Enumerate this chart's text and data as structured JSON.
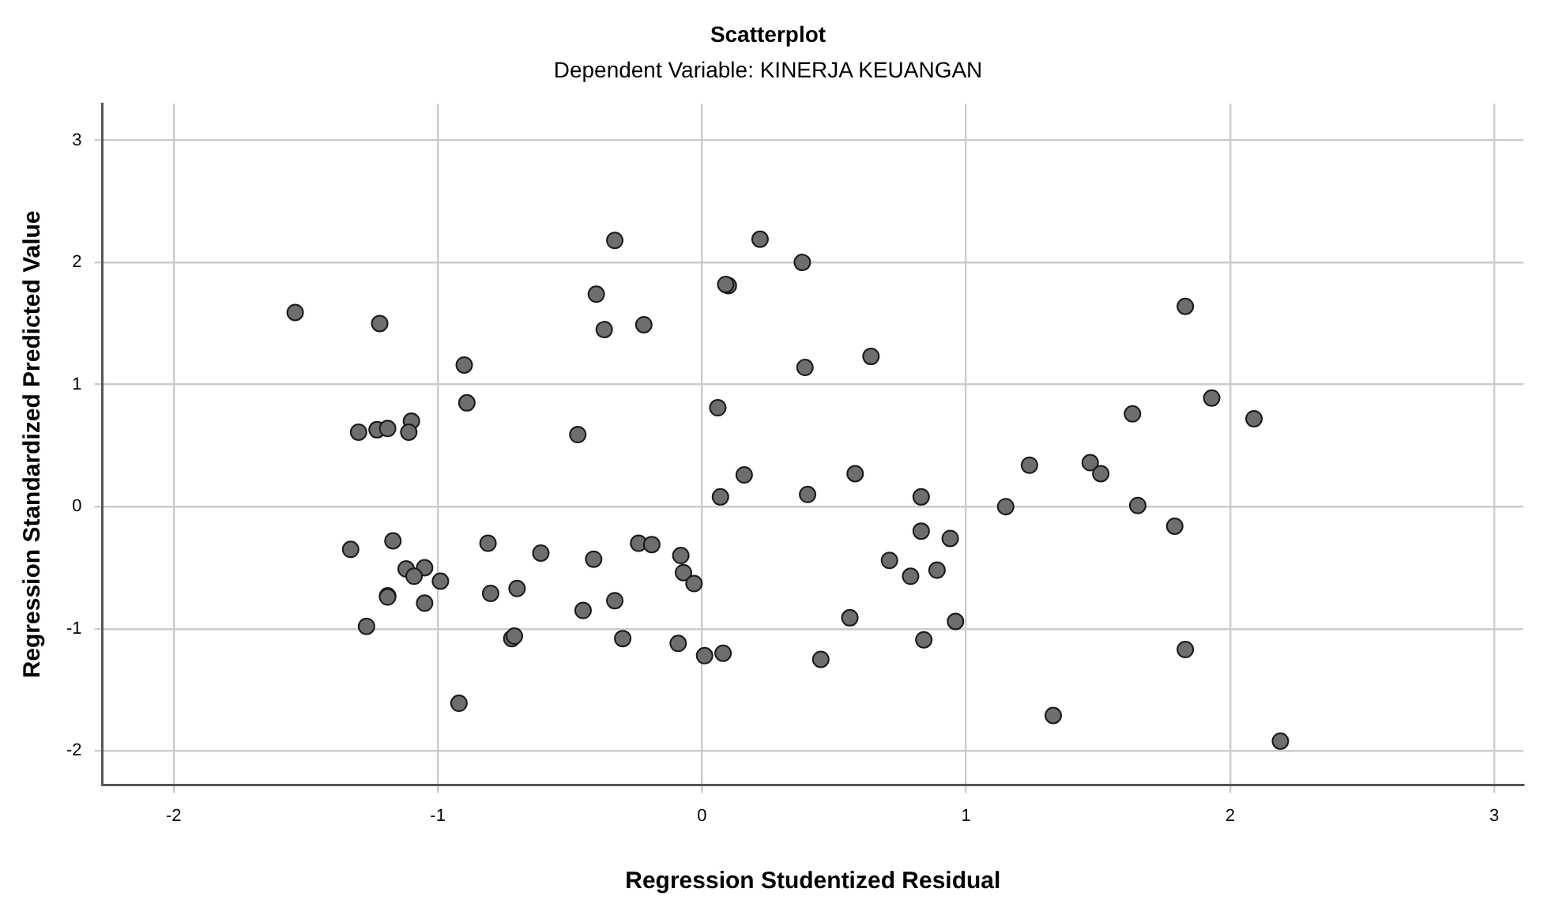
{
  "chart_data": {
    "type": "scatter",
    "title": "Scatterplot",
    "subtitle": "Dependent Variable: KINERJA KEUANGAN",
    "xlabel": "Regression Studentized Residual",
    "ylabel": "Regression Standardized Predicted Value",
    "xlim": [
      -2.27,
      3.11
    ],
    "ylim": [
      -2.28,
      3.3
    ],
    "xticks": [
      -2,
      -1,
      0,
      1,
      2,
      3
    ],
    "yticks": [
      -2,
      -1,
      0,
      1,
      2,
      3
    ],
    "grid": true,
    "marker": "circle",
    "legend": false,
    "series": [
      {
        "color": "#6e6e6e",
        "x": [
          -1.54,
          -1.22,
          -0.9,
          -0.89,
          -1.1,
          -1.11,
          -1.3,
          -1.23,
          -1.19,
          -0.47,
          -0.33,
          -0.4,
          -0.37,
          -0.22,
          0.1,
          0.09,
          0.22,
          0.38,
          0.39,
          0.06,
          0.16,
          0.07,
          0.4,
          -1.33,
          -1.17,
          -1.12,
          -1.05,
          -1.09,
          -0.99,
          -1.19,
          -1.19,
          -1.05,
          -1.27,
          -0.81,
          -0.8,
          -0.7,
          -0.61,
          -0.41,
          -0.45,
          -0.33,
          -0.72,
          -0.71,
          -0.3,
          -0.24,
          -0.19,
          -0.08,
          -0.07,
          -0.03,
          -0.09,
          0.01,
          0.08,
          -0.92,
          0.64,
          0.58,
          0.83,
          0.83,
          0.94,
          0.71,
          0.79,
          0.89,
          0.56,
          0.45,
          0.84,
          0.96,
          1.15,
          1.24,
          1.47,
          1.51,
          1.63,
          1.65,
          1.79,
          1.83,
          1.93,
          2.09,
          1.83,
          1.33,
          2.19
        ],
        "values": [
          1.59,
          1.5,
          1.16,
          0.85,
          0.7,
          0.61,
          0.61,
          0.63,
          0.64,
          0.59,
          2.18,
          1.74,
          1.45,
          1.49,
          1.81,
          1.82,
          2.19,
          2.0,
          1.14,
          0.81,
          0.26,
          0.08,
          0.1,
          -0.35,
          -0.28,
          -0.51,
          -0.5,
          -0.57,
          -0.61,
          -0.73,
          -0.74,
          -0.79,
          -0.98,
          -0.3,
          -0.71,
          -0.67,
          -0.38,
          -0.43,
          -0.85,
          -0.77,
          -1.08,
          -1.06,
          -1.08,
          -0.3,
          -0.31,
          -0.4,
          -0.54,
          -0.63,
          -1.12,
          -1.22,
          -1.2,
          -1.61,
          1.23,
          0.27,
          0.08,
          -0.2,
          -0.26,
          -0.44,
          -0.57,
          -0.52,
          -0.91,
          -1.25,
          -1.09,
          -0.94,
          0.0,
          0.34,
          0.36,
          0.27,
          0.76,
          0.01,
          -0.16,
          1.64,
          0.89,
          0.72,
          -1.17,
          -1.71,
          -1.92
        ]
      }
    ]
  }
}
